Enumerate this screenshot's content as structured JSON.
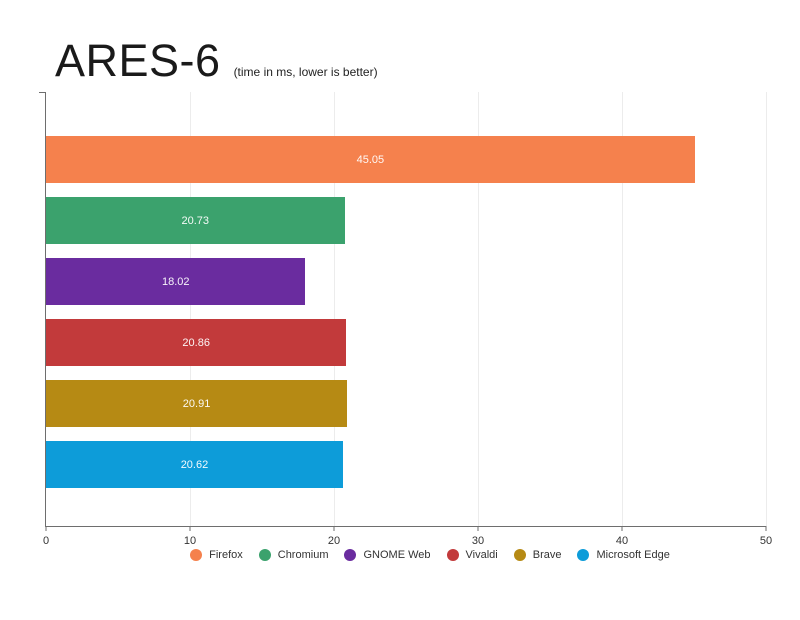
{
  "header": {
    "title": "ARES-6",
    "subtitle": "(time in ms, lower is better)"
  },
  "chart_data": {
    "type": "bar",
    "orientation": "horizontal",
    "title": "ARES-6",
    "subtitle": "(time in ms, lower is better)",
    "categories": [
      "Firefox",
      "Chromium",
      "GNOME Web",
      "Vivaldi",
      "Brave",
      "Microsoft Edge"
    ],
    "values": [
      45.05,
      20.73,
      18.02,
      20.86,
      20.91,
      20.62
    ],
    "value_labels": [
      "45.05",
      "20.73",
      "18.02",
      "20.86",
      "20.91",
      "20.62"
    ],
    "bar_colors": [
      "#F5814D",
      "#3BA26D",
      "#6A2C9F",
      "#C23A3B",
      "#B68A14",
      "#0D9CD9"
    ],
    "xlabel": "",
    "ylabel": "",
    "xlim": [
      0,
      50
    ],
    "x_ticks": [
      0,
      10,
      20,
      30,
      40,
      50
    ],
    "x_tick_labels": [
      "0",
      "10",
      "20",
      "30",
      "40",
      "50"
    ],
    "grid": true,
    "legend_position": "bottom",
    "legend": [
      {
        "label": "Firefox",
        "color": "#F5814D"
      },
      {
        "label": "Chromium",
        "color": "#3BA26D"
      },
      {
        "label": "GNOME Web",
        "color": "#6A2C9F"
      },
      {
        "label": "Vivaldi",
        "color": "#C23A3B"
      },
      {
        "label": "Brave",
        "color": "#B68A14"
      },
      {
        "label": "Microsoft Edge",
        "color": "#0D9CD9"
      }
    ],
    "style_colors": {
      "axis": "#6e6e6e",
      "grid": "#ececec",
      "tick_text": "#333333",
      "value_label_text": "#ffffff",
      "title_text": "#1a1a1a",
      "background": "#ffffff"
    }
  }
}
